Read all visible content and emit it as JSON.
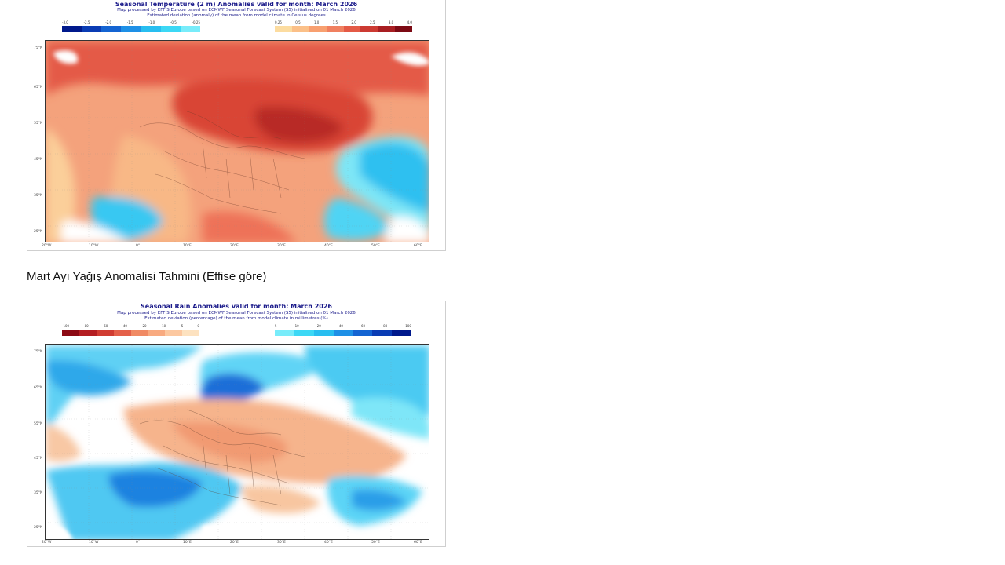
{
  "temperature_map": {
    "title": "Seasonal Temperature (2 m) Anomalies valid for month: March 2026",
    "subtitle_1": "Map processed by EFFIS Europe based on ECMWF Seasonal Forecast System (S5) initialised on 01 March 2026",
    "subtitle_2": "Estimated deviation (anomaly) of the mean from model climate in Celsius degrees",
    "cold_colors": [
      "#00198c",
      "#0a3cb4",
      "#1464d2",
      "#1e90e6",
      "#28bef0",
      "#3cd8f5",
      "#78ecfa"
    ],
    "warm_colors": [
      "#fcdca0",
      "#fbc088",
      "#f8a070",
      "#f08060",
      "#e45a46",
      "#cc3a32",
      "#a81e22",
      "#7c0a14"
    ],
    "cold_ticks": [
      "-3.0",
      "-2.5",
      "-2.0",
      "-1.5",
      "-1.0",
      "-0.5",
      "-0.25"
    ],
    "warm_ticks": [
      "0.25",
      "0.5",
      "1.0",
      "1.5",
      "2.0",
      "2.5",
      "3.0",
      "4.0"
    ]
  },
  "caption": "Mart Ayı Yağış Anomalisi Tahmini (Effise göre)",
  "rain_map": {
    "title": "Seasonal Rain Anomalies valid for month: March 2026",
    "subtitle_1": "Map processed by EFFIS Europe based on ECMWF Seasonal Forecast System (S5) initialised on 01 March 2026",
    "subtitle_2": "Estimated deviation (percentage) of the mean from model climate in millimetres (%)",
    "dry_colors": [
      "#8c0a14",
      "#b41e22",
      "#d03c32",
      "#e4604a",
      "#f08a64",
      "#f8aa80",
      "#fcc8a0",
      "#fde2c0"
    ],
    "wet_colors": [
      "#78ecfa",
      "#3cd8f5",
      "#28bef0",
      "#1e90e6",
      "#1464d2",
      "#0a3cb4",
      "#00198c"
    ],
    "dry_ticks": [
      "-100",
      "-80",
      "-60",
      "-40",
      "-20",
      "-10",
      "-5",
      "0"
    ],
    "wet_ticks": [
      "5",
      "10",
      "20",
      "40",
      "60",
      "80",
      "100"
    ]
  },
  "axis": {
    "lats": [
      "75°N",
      "65°N",
      "55°N",
      "45°N",
      "35°N",
      "25°N"
    ],
    "lons": [
      "20°W",
      "10°W",
      "0°",
      "10°E",
      "20°E",
      "30°E",
      "40°E",
      "50°E",
      "60°E"
    ]
  }
}
